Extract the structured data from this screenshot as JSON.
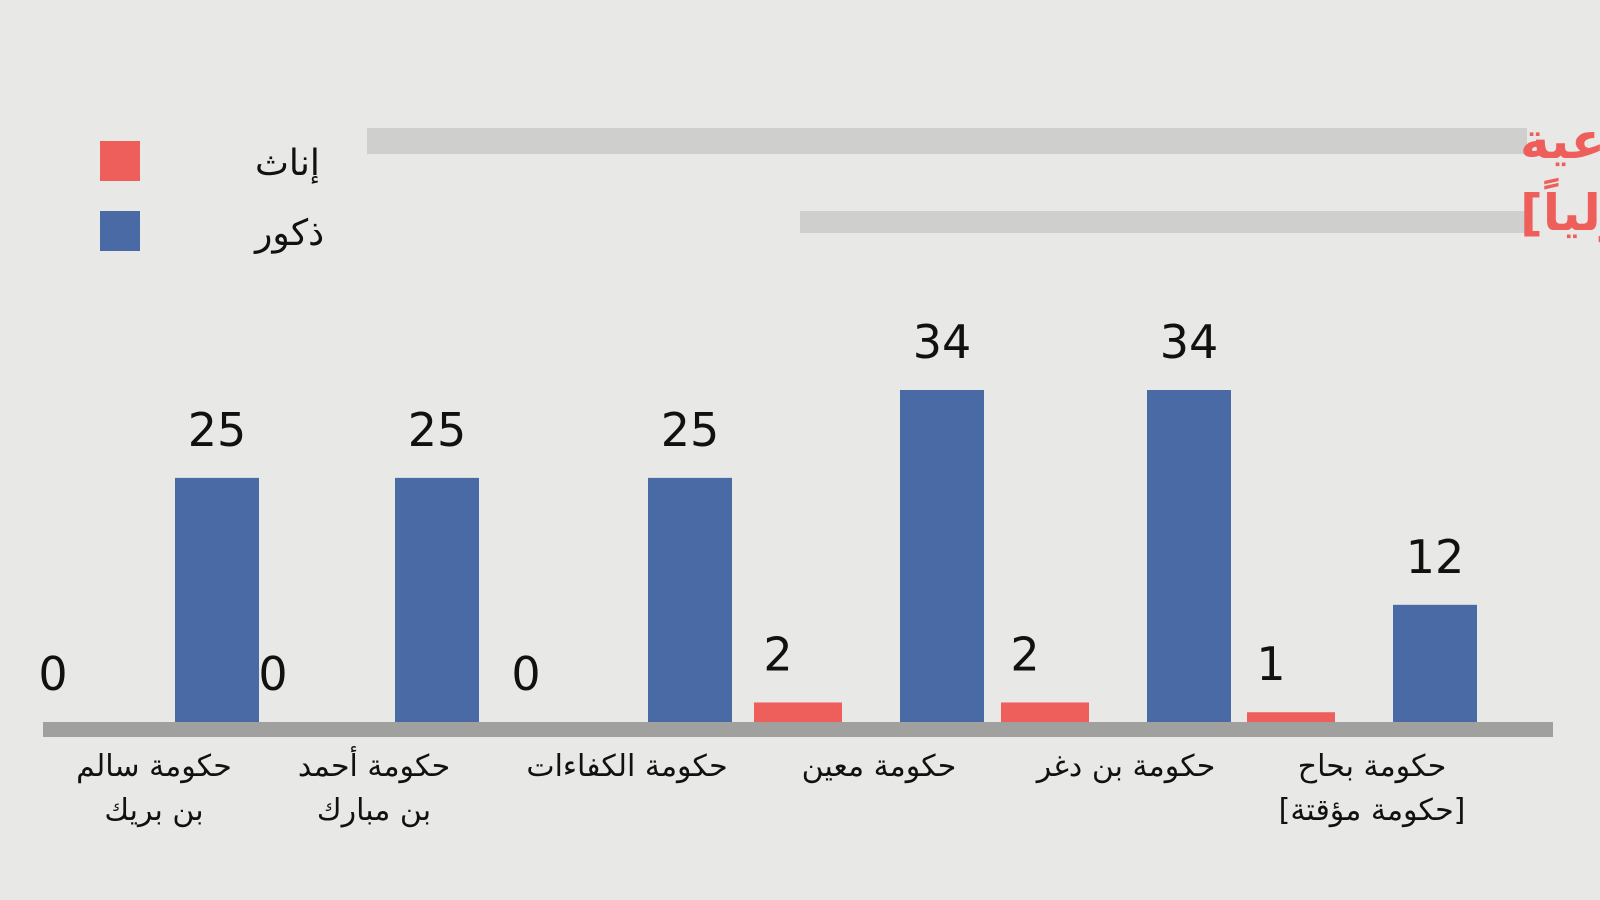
{
  "chart_data": {
    "type": "bar",
    "title_lines": [
      "عدد النساء في الحكومات التي شكلتها الشرعية",
      "[حكومات معترف بها دولياً]"
    ],
    "categories": [
      [
        "حكومة سالم",
        "بن بريك"
      ],
      [
        "حكومة أحمد",
        "بن مبارك"
      ],
      [
        "حكومة الكفاءات"
      ],
      [
        "حكومة معين"
      ],
      [
        "حكومة بن دغر"
      ],
      [
        "حكومة بحاح",
        "[حكومة مؤقتة]"
      ]
    ],
    "series": [
      {
        "name": "إناث",
        "color": "#ee5f5b",
        "values": [
          0,
          0,
          0,
          2,
          2,
          1
        ]
      },
      {
        "name": "ذكور",
        "color": "#4a6aa5",
        "values": [
          25,
          25,
          25,
          34,
          34,
          12
        ]
      }
    ],
    "ylim": [
      0,
      34
    ],
    "legend_position": "top-left",
    "grid": false,
    "colors": {
      "background": "#e8e8e6",
      "baseline": "#a0a09e",
      "title_highlight": "#cfcfcd"
    }
  }
}
